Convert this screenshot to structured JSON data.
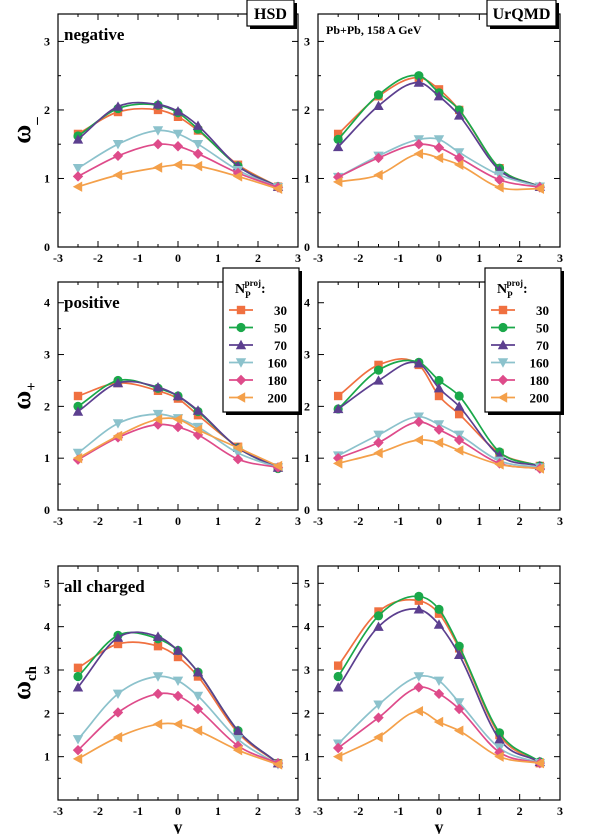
{
  "chart_data": [
    {
      "type": "line",
      "panel": "negative-hsd",
      "label": "negative",
      "model": "HSD",
      "ylabel": "ω_",
      "xlabel": "",
      "xlim": [
        -3,
        3
      ],
      "ylim": [
        0,
        3.4
      ],
      "yticks": [
        0,
        1,
        2,
        3
      ],
      "series": [
        {
          "name": "30",
          "x": [
            -2.5,
            -1.5,
            -0.5,
            0,
            0.5,
            1.5,
            2.5
          ],
          "y": [
            1.65,
            1.97,
            2.0,
            1.9,
            1.7,
            1.2,
            0.88
          ]
        },
        {
          "name": "50",
          "x": [
            -2.5,
            -1.5,
            -0.5,
            0,
            0.5,
            1.5,
            2.5
          ],
          "y": [
            1.62,
            2.02,
            2.07,
            1.96,
            1.72,
            1.18,
            0.88
          ]
        },
        {
          "name": "70",
          "x": [
            -2.5,
            -1.5,
            -0.5,
            0,
            0.5,
            1.5,
            2.5
          ],
          "y": [
            1.57,
            2.05,
            2.08,
            1.98,
            1.77,
            1.18,
            0.88
          ]
        },
        {
          "name": "160",
          "x": [
            -2.5,
            -1.5,
            -0.5,
            0,
            0.5,
            1.5,
            2.5
          ],
          "y": [
            1.15,
            1.5,
            1.7,
            1.65,
            1.5,
            1.12,
            0.87
          ]
        },
        {
          "name": "180",
          "x": [
            -2.5,
            -1.5,
            -0.5,
            0,
            0.5,
            1.5,
            2.5
          ],
          "y": [
            1.03,
            1.33,
            1.5,
            1.47,
            1.36,
            1.08,
            0.87
          ]
        },
        {
          "name": "200",
          "x": [
            -2.5,
            -1.5,
            -0.5,
            0,
            0.5,
            1.5,
            2.5
          ],
          "y": [
            0.88,
            1.05,
            1.16,
            1.2,
            1.18,
            1.03,
            0.85
          ]
        }
      ]
    },
    {
      "type": "line",
      "panel": "negative-urqmd",
      "label": "",
      "model": "UrQMD",
      "system": "Pb+Pb,  158 A GeV",
      "ylabel": "",
      "xlabel": "",
      "xlim": [
        -3,
        3
      ],
      "ylim": [
        0,
        3.4
      ],
      "yticks": [
        0,
        1,
        2,
        3
      ],
      "series": [
        {
          "name": "30",
          "x": [
            -2.5,
            -1.5,
            -0.5,
            0,
            0.5,
            1.5,
            2.5
          ],
          "y": [
            1.65,
            2.2,
            2.47,
            2.3,
            2.0,
            1.15,
            0.88
          ]
        },
        {
          "name": "50",
          "x": [
            -2.5,
            -1.5,
            -0.5,
            0,
            0.5,
            1.5,
            2.5
          ],
          "y": [
            1.57,
            2.22,
            2.5,
            2.25,
            2.0,
            1.15,
            0.88
          ]
        },
        {
          "name": "70",
          "x": [
            -2.5,
            -1.5,
            -0.5,
            0,
            0.5,
            1.5,
            2.5
          ],
          "y": [
            1.46,
            2.06,
            2.4,
            2.2,
            1.92,
            1.12,
            0.88
          ]
        },
        {
          "name": "160",
          "x": [
            -2.5,
            -1.5,
            -0.5,
            0,
            0.5,
            1.5,
            2.5
          ],
          "y": [
            1.02,
            1.33,
            1.57,
            1.57,
            1.38,
            1.05,
            0.88
          ]
        },
        {
          "name": "180",
          "x": [
            -2.5,
            -1.5,
            -0.5,
            0,
            0.5,
            1.5,
            2.5
          ],
          "y": [
            1.02,
            1.3,
            1.5,
            1.45,
            1.3,
            0.98,
            0.87
          ]
        },
        {
          "name": "200",
          "x": [
            -2.5,
            -1.5,
            -0.5,
            0,
            0.5,
            1.5,
            2.5
          ],
          "y": [
            0.95,
            1.05,
            1.36,
            1.3,
            1.2,
            0.87,
            0.85
          ]
        }
      ]
    },
    {
      "type": "line",
      "panel": "positive-hsd",
      "label": "positive",
      "model": "",
      "ylabel": "ω+",
      "xlabel": "",
      "xlim": [
        -3,
        3
      ],
      "ylim": [
        0,
        4.4
      ],
      "yticks": [
        0,
        1,
        2,
        3,
        4
      ],
      "series": [
        {
          "name": "30",
          "x": [
            -2.5,
            -1.5,
            -0.5,
            0,
            0.5,
            1.5,
            2.5
          ],
          "y": [
            2.2,
            2.45,
            2.3,
            2.15,
            1.83,
            1.22,
            0.82
          ]
        },
        {
          "name": "50",
          "x": [
            -2.5,
            -1.5,
            -0.5,
            0,
            0.5,
            1.5,
            2.5
          ],
          "y": [
            2.0,
            2.5,
            2.35,
            2.2,
            1.9,
            1.2,
            0.8
          ]
        },
        {
          "name": "70",
          "x": [
            -2.5,
            -1.5,
            -0.5,
            0,
            0.5,
            1.5,
            2.5
          ],
          "y": [
            1.9,
            2.45,
            2.37,
            2.2,
            1.92,
            1.2,
            0.82
          ]
        },
        {
          "name": "160",
          "x": [
            -2.5,
            -1.5,
            -0.5,
            0,
            0.5,
            1.5,
            2.5
          ],
          "y": [
            1.1,
            1.67,
            1.85,
            1.77,
            1.6,
            1.1,
            0.82
          ]
        },
        {
          "name": "180",
          "x": [
            -2.5,
            -1.5,
            -0.5,
            0,
            0.5,
            1.5,
            2.5
          ],
          "y": [
            0.97,
            1.4,
            1.65,
            1.6,
            1.45,
            0.98,
            0.82
          ]
        },
        {
          "name": "200",
          "x": [
            -2.5,
            -1.5,
            -0.5,
            0,
            0.5,
            1.5,
            2.5
          ],
          "y": [
            1.0,
            1.43,
            1.75,
            1.75,
            1.55,
            1.2,
            0.85
          ]
        }
      ]
    },
    {
      "type": "line",
      "panel": "positive-urqmd",
      "label": "",
      "model": "",
      "ylabel": "",
      "xlabel": "",
      "xlim": [
        -3,
        3
      ],
      "ylim": [
        0,
        4.4
      ],
      "yticks": [
        0,
        1,
        2,
        3,
        4
      ],
      "series": [
        {
          "name": "30",
          "x": [
            -2.5,
            -1.5,
            -0.5,
            0,
            0.5,
            1.5,
            2.5
          ],
          "y": [
            2.2,
            2.8,
            2.8,
            2.2,
            1.85,
            1.1,
            0.85
          ]
        },
        {
          "name": "50",
          "x": [
            -2.5,
            -1.5,
            -0.5,
            0,
            0.5,
            1.5,
            2.5
          ],
          "y": [
            1.95,
            2.7,
            2.85,
            2.5,
            2.2,
            1.12,
            0.85
          ]
        },
        {
          "name": "70",
          "x": [
            -2.5,
            -1.5,
            -0.5,
            0,
            0.5,
            1.5,
            2.5
          ],
          "y": [
            1.95,
            2.5,
            2.83,
            2.35,
            2.0,
            1.05,
            0.85
          ]
        },
        {
          "name": "160",
          "x": [
            -2.5,
            -1.5,
            -0.5,
            0,
            0.5,
            1.5,
            2.5
          ],
          "y": [
            1.05,
            1.45,
            1.8,
            1.65,
            1.45,
            0.95,
            0.82
          ]
        },
        {
          "name": "180",
          "x": [
            -2.5,
            -1.5,
            -0.5,
            0,
            0.5,
            1.5,
            2.5
          ],
          "y": [
            1.0,
            1.3,
            1.7,
            1.55,
            1.35,
            0.9,
            0.8
          ]
        },
        {
          "name": "200",
          "x": [
            -2.5,
            -1.5,
            -0.5,
            0,
            0.5,
            1.5,
            2.5
          ],
          "y": [
            0.9,
            1.1,
            1.35,
            1.3,
            1.15,
            0.88,
            0.8
          ]
        }
      ]
    },
    {
      "type": "line",
      "panel": "charged-hsd",
      "label": "all charged",
      "model": "",
      "ylabel": "ωch",
      "xlabel": "y",
      "xlim": [
        -3,
        3
      ],
      "ylim": [
        0,
        5.4
      ],
      "yticks": [
        1,
        2,
        3,
        4,
        5
      ],
      "series": [
        {
          "name": "30",
          "x": [
            -2.5,
            -1.5,
            -0.5,
            0,
            0.5,
            1.5,
            2.5
          ],
          "y": [
            3.05,
            3.6,
            3.55,
            3.3,
            2.85,
            1.55,
            0.85
          ]
        },
        {
          "name": "50",
          "x": [
            -2.5,
            -1.5,
            -0.5,
            0,
            0.5,
            1.5,
            2.5
          ],
          "y": [
            2.85,
            3.8,
            3.72,
            3.45,
            2.95,
            1.6,
            0.85
          ]
        },
        {
          "name": "70",
          "x": [
            -2.5,
            -1.5,
            -0.5,
            0,
            0.5,
            1.5,
            2.5
          ],
          "y": [
            2.6,
            3.75,
            3.77,
            3.45,
            2.95,
            1.6,
            0.85
          ]
        },
        {
          "name": "160",
          "x": [
            -2.5,
            -1.5,
            -0.5,
            0,
            0.5,
            1.5,
            2.5
          ],
          "y": [
            1.4,
            2.45,
            2.85,
            2.75,
            2.4,
            1.4,
            0.82
          ]
        },
        {
          "name": "180",
          "x": [
            -2.5,
            -1.5,
            -0.5,
            0,
            0.5,
            1.5,
            2.5
          ],
          "y": [
            1.15,
            2.02,
            2.45,
            2.4,
            2.1,
            1.25,
            0.85
          ]
        },
        {
          "name": "200",
          "x": [
            -2.5,
            -1.5,
            -0.5,
            0,
            0.5,
            1.5,
            2.5
          ],
          "y": [
            0.95,
            1.45,
            1.75,
            1.75,
            1.6,
            1.15,
            0.82
          ]
        }
      ]
    },
    {
      "type": "line",
      "panel": "charged-urqmd",
      "label": "",
      "model": "",
      "ylabel": "",
      "xlabel": "y",
      "xlim": [
        -3,
        3
      ],
      "ylim": [
        0,
        5.4
      ],
      "yticks": [
        1,
        2,
        3,
        4,
        5
      ],
      "series": [
        {
          "name": "30",
          "x": [
            -2.5,
            -1.5,
            -0.5,
            0,
            0.5,
            1.5,
            2.5
          ],
          "y": [
            3.1,
            4.35,
            4.6,
            4.3,
            3.5,
            1.5,
            0.85
          ]
        },
        {
          "name": "50",
          "x": [
            -2.5,
            -1.5,
            -0.5,
            0,
            0.5,
            1.5,
            2.5
          ],
          "y": [
            2.85,
            4.25,
            4.7,
            4.4,
            3.55,
            1.55,
            0.88
          ]
        },
        {
          "name": "70",
          "x": [
            -2.5,
            -1.5,
            -0.5,
            0,
            0.5,
            1.5,
            2.5
          ],
          "y": [
            2.6,
            4.0,
            4.4,
            4.05,
            3.35,
            1.4,
            0.88
          ]
        },
        {
          "name": "160",
          "x": [
            -2.5,
            -1.5,
            -0.5,
            0,
            0.5,
            1.5,
            2.5
          ],
          "y": [
            1.3,
            2.2,
            2.85,
            2.75,
            2.25,
            1.2,
            0.85
          ]
        },
        {
          "name": "180",
          "x": [
            -2.5,
            -1.5,
            -0.5,
            0,
            0.5,
            1.5,
            2.5
          ],
          "y": [
            1.2,
            1.9,
            2.6,
            2.45,
            2.1,
            1.1,
            0.85
          ]
        },
        {
          "name": "200",
          "x": [
            -2.5,
            -1.5,
            -0.5,
            0,
            0.5,
            1.5,
            2.5
          ],
          "y": [
            1.0,
            1.45,
            2.05,
            1.8,
            1.6,
            1.0,
            0.85
          ]
        }
      ]
    }
  ],
  "xticks": [
    -3,
    -2,
    -1,
    0,
    1,
    2,
    3
  ],
  "legend": {
    "title_main": "N",
    "title_sub": "P",
    "title_sup": "proj",
    "title_suffix": ":",
    "placement": "right, middle row panels",
    "entries": [
      "30",
      "50",
      "70",
      "160",
      "180",
      "200"
    ]
  },
  "series_style": {
    "30": {
      "color": "#f07040",
      "marker": "square"
    },
    "50": {
      "color": "#1aa84a",
      "marker": "circle"
    },
    "70": {
      "color": "#5c3f8f",
      "marker": "triangle-up"
    },
    "160": {
      "color": "#8cc2cc",
      "marker": "triangle-down"
    },
    "180": {
      "color": "#de4b8a",
      "marker": "diamond"
    },
    "200": {
      "color": "#f4a04a",
      "marker": "triangle-left"
    }
  }
}
